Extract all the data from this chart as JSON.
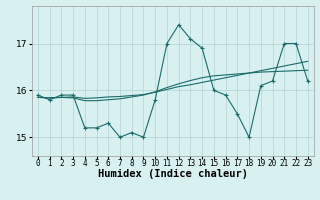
{
  "x": [
    0,
    1,
    2,
    3,
    4,
    5,
    6,
    7,
    8,
    9,
    10,
    11,
    12,
    13,
    14,
    15,
    16,
    17,
    18,
    19,
    20,
    21,
    22,
    23
  ],
  "y_main": [
    15.9,
    15.8,
    15.9,
    15.9,
    15.2,
    15.2,
    15.3,
    15.0,
    15.1,
    15.0,
    15.8,
    17.0,
    17.4,
    17.1,
    16.9,
    16.0,
    15.9,
    15.5,
    15.0,
    16.1,
    16.2,
    17.0,
    17.0,
    16.2
  ],
  "y_trend1": [
    15.85,
    15.84,
    15.85,
    15.86,
    15.83,
    15.84,
    15.86,
    15.87,
    15.89,
    15.91,
    15.96,
    16.02,
    16.08,
    16.12,
    16.17,
    16.22,
    16.27,
    16.32,
    16.37,
    16.42,
    16.47,
    16.52,
    16.57,
    16.62
  ],
  "y_trend2": [
    15.85,
    15.84,
    15.85,
    15.84,
    15.78,
    15.78,
    15.8,
    15.82,
    15.86,
    15.9,
    15.97,
    16.06,
    16.14,
    16.21,
    16.27,
    16.31,
    16.33,
    16.35,
    16.37,
    16.39,
    16.4,
    16.41,
    16.42,
    16.43
  ],
  "line_color": "#1a6b6b",
  "bg_color": "#d8f0f0",
  "grid_color": "#b8d8d8",
  "xlabel": "Humidex (Indice chaleur)",
  "yticks": [
    15,
    16,
    17
  ],
  "xticks": [
    0,
    1,
    2,
    3,
    4,
    5,
    6,
    7,
    8,
    9,
    10,
    11,
    12,
    13,
    14,
    15,
    16,
    17,
    18,
    19,
    20,
    21,
    22,
    23
  ],
  "ylim": [
    14.6,
    17.8
  ],
  "xlim": [
    -0.5,
    23.5
  ],
  "tick_fontsize": 5.5,
  "ylabel_fontsize": 6.5,
  "xlabel_fontsize": 7.5
}
